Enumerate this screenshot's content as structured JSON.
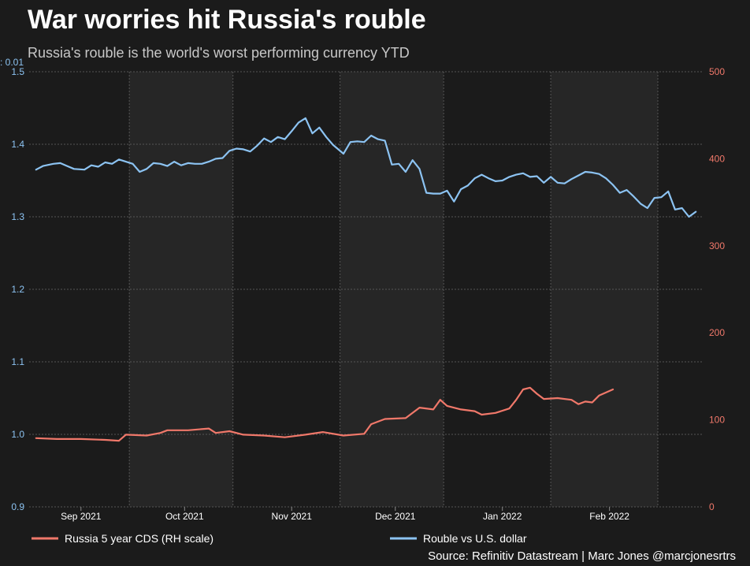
{
  "header": {
    "title": "War worries hit Russia's rouble",
    "subtitle": "Russia's rouble is the world's worst performing currency YTD",
    "unit_label": ": 0.01"
  },
  "footer": {
    "source": "Source: Refinitiv Datastream | Marc Jones @marcjonesrtrs"
  },
  "colors": {
    "background": "#1b1b1b",
    "plot_background": "#1b1b1b",
    "band": "#262626",
    "rouble": "#8cc3f2",
    "cds": "#f0786a",
    "grid": "#555555"
  },
  "chart_data": {
    "type": "line",
    "grid": true,
    "legend_position": "bottom",
    "x_ticks": [
      {
        "label": "Sep 2021",
        "date": "2021-09-01"
      },
      {
        "label": "Oct 2021",
        "date": "2021-10-01"
      },
      {
        "label": "Nov 2021",
        "date": "2021-11-01"
      },
      {
        "label": "Dec 2021",
        "date": "2021-12-01"
      },
      {
        "label": "Jan 2022",
        "date": "2022-01-01"
      },
      {
        "label": "Feb 2022",
        "date": "2022-02-01"
      }
    ],
    "xlim": [
      "2021-08-17",
      "2022-02-28"
    ],
    "y_left": {
      "ticks": [
        "0.9",
        "1.0",
        "1.1",
        "1.2",
        "1.3",
        "1.4",
        "1.5"
      ],
      "lim": [
        0.9,
        1.5
      ]
    },
    "y_right": {
      "ticks": [
        "0",
        "100",
        "200",
        "300",
        "400",
        "500"
      ],
      "lim": [
        0,
        500
      ]
    },
    "series": [
      {
        "name": "Rouble vs U.S. dollar",
        "axis": "left",
        "color": "#8cc3f2",
        "points": [
          [
            "2021-08-19",
            1.365
          ],
          [
            "2021-08-21",
            1.37
          ],
          [
            "2021-08-24",
            1.373
          ],
          [
            "2021-08-26",
            1.374
          ],
          [
            "2021-08-28",
            1.37
          ],
          [
            "2021-08-30",
            1.366
          ],
          [
            "2021-09-02",
            1.365
          ],
          [
            "2021-09-04",
            1.371
          ],
          [
            "2021-09-06",
            1.369
          ],
          [
            "2021-09-08",
            1.375
          ],
          [
            "2021-09-10",
            1.373
          ],
          [
            "2021-09-12",
            1.379
          ],
          [
            "2021-09-14",
            1.376
          ],
          [
            "2021-09-16",
            1.373
          ],
          [
            "2021-09-18",
            1.362
          ],
          [
            "2021-09-20",
            1.366
          ],
          [
            "2021-09-22",
            1.374
          ],
          [
            "2021-09-24",
            1.373
          ],
          [
            "2021-09-26",
            1.37
          ],
          [
            "2021-09-28",
            1.376
          ],
          [
            "2021-09-30",
            1.371
          ],
          [
            "2021-10-02",
            1.374
          ],
          [
            "2021-10-04",
            1.373
          ],
          [
            "2021-10-06",
            1.373
          ],
          [
            "2021-10-08",
            1.376
          ],
          [
            "2021-10-10",
            1.38
          ],
          [
            "2021-10-12",
            1.381
          ],
          [
            "2021-10-14",
            1.391
          ],
          [
            "2021-10-16",
            1.394
          ],
          [
            "2021-10-18",
            1.393
          ],
          [
            "2021-10-20",
            1.39
          ],
          [
            "2021-10-22",
            1.398
          ],
          [
            "2021-10-24",
            1.408
          ],
          [
            "2021-10-26",
            1.403
          ],
          [
            "2021-10-28",
            1.41
          ],
          [
            "2021-10-30",
            1.407
          ],
          [
            "2021-11-01",
            1.418
          ],
          [
            "2021-11-03",
            1.43
          ],
          [
            "2021-11-05",
            1.436
          ],
          [
            "2021-11-07",
            1.415
          ],
          [
            "2021-11-09",
            1.423
          ],
          [
            "2021-11-11",
            1.41
          ],
          [
            "2021-11-13",
            1.399
          ],
          [
            "2021-11-16",
            1.387
          ],
          [
            "2021-11-18",
            1.403
          ],
          [
            "2021-11-20",
            1.404
          ],
          [
            "2021-11-22",
            1.403
          ],
          [
            "2021-11-24",
            1.412
          ],
          [
            "2021-11-26",
            1.407
          ],
          [
            "2021-11-28",
            1.405
          ],
          [
            "2021-11-30",
            1.372
          ],
          [
            "2021-12-02",
            1.373
          ],
          [
            "2021-12-04",
            1.362
          ],
          [
            "2021-12-06",
            1.378
          ],
          [
            "2021-12-08",
            1.366
          ],
          [
            "2021-12-10",
            1.333
          ],
          [
            "2021-12-12",
            1.332
          ],
          [
            "2021-12-14",
            1.332
          ],
          [
            "2021-12-16",
            1.336
          ],
          [
            "2021-12-18",
            1.321
          ],
          [
            "2021-12-20",
            1.338
          ],
          [
            "2021-12-22",
            1.343
          ],
          [
            "2021-12-24",
            1.353
          ],
          [
            "2021-12-26",
            1.358
          ],
          [
            "2021-12-28",
            1.353
          ],
          [
            "2021-12-30",
            1.349
          ],
          [
            "2022-01-01",
            1.35
          ],
          [
            "2022-01-03",
            1.355
          ],
          [
            "2022-01-05",
            1.358
          ],
          [
            "2022-01-07",
            1.36
          ],
          [
            "2022-01-09",
            1.355
          ],
          [
            "2022-01-11",
            1.356
          ],
          [
            "2022-01-13",
            1.347
          ],
          [
            "2022-01-15",
            1.355
          ],
          [
            "2022-01-17",
            1.347
          ],
          [
            "2022-01-19",
            1.346
          ],
          [
            "2022-01-21",
            1.352
          ],
          [
            "2022-01-23",
            1.357
          ],
          [
            "2022-01-25",
            1.362
          ],
          [
            "2022-01-27",
            1.361
          ],
          [
            "2022-01-29",
            1.359
          ],
          [
            "2022-01-31",
            1.353
          ],
          [
            "2022-02-02",
            1.344
          ],
          [
            "2022-02-04",
            1.333
          ],
          [
            "2022-02-06",
            1.337
          ],
          [
            "2022-02-08",
            1.328
          ],
          [
            "2022-02-10",
            1.318
          ],
          [
            "2022-02-12",
            1.312
          ],
          [
            "2022-02-14",
            1.326
          ],
          [
            "2022-02-16",
            1.327
          ],
          [
            "2022-02-18",
            1.335
          ],
          [
            "2022-02-20",
            1.31
          ],
          [
            "2022-02-22",
            1.312
          ],
          [
            "2022-02-24",
            1.3
          ],
          [
            "2022-02-26",
            1.307
          ]
        ]
      },
      {
        "name": "Russia 5 year CDS (RH scale)",
        "axis": "right",
        "color": "#f0786a",
        "points": [
          [
            "2021-08-19",
            79
          ],
          [
            "2021-08-25",
            78
          ],
          [
            "2021-09-01",
            78
          ],
          [
            "2021-09-08",
            77
          ],
          [
            "2021-09-12",
            76
          ],
          [
            "2021-09-14",
            83
          ],
          [
            "2021-09-20",
            82
          ],
          [
            "2021-09-24",
            85
          ],
          [
            "2021-09-26",
            88
          ],
          [
            "2021-10-02",
            88
          ],
          [
            "2021-10-08",
            90
          ],
          [
            "2021-10-10",
            85
          ],
          [
            "2021-10-14",
            87
          ],
          [
            "2021-10-18",
            83
          ],
          [
            "2021-10-24",
            82
          ],
          [
            "2021-10-30",
            80
          ],
          [
            "2021-11-05",
            83
          ],
          [
            "2021-11-10",
            86
          ],
          [
            "2021-11-16",
            82
          ],
          [
            "2021-11-22",
            84
          ],
          [
            "2021-11-24",
            95
          ],
          [
            "2021-11-28",
            101
          ],
          [
            "2021-12-04",
            102
          ],
          [
            "2021-12-08",
            114
          ],
          [
            "2021-12-12",
            112
          ],
          [
            "2021-12-14",
            123
          ],
          [
            "2021-12-16",
            116
          ],
          [
            "2021-12-20",
            112
          ],
          [
            "2021-12-24",
            110
          ],
          [
            "2021-12-26",
            106
          ],
          [
            "2021-12-30",
            108
          ],
          [
            "2022-01-03",
            113
          ],
          [
            "2022-01-05",
            123
          ],
          [
            "2022-01-07",
            135
          ],
          [
            "2022-01-09",
            137
          ],
          [
            "2022-01-11",
            130
          ],
          [
            "2022-01-13",
            124
          ],
          [
            "2022-01-17",
            125
          ],
          [
            "2022-01-21",
            123
          ],
          [
            "2022-01-23",
            118
          ],
          [
            "2022-01-25",
            121
          ],
          [
            "2022-01-27",
            120
          ],
          [
            "2022-01-29",
            128
          ],
          [
            "2022-02-02",
            135
          ]
        ]
      }
    ]
  },
  "legend": [
    {
      "label": "Russia 5 year CDS (RH scale)",
      "color": "#f0786a"
    },
    {
      "label": "Rouble vs U.S. dollar",
      "color": "#8cc3f2"
    }
  ]
}
